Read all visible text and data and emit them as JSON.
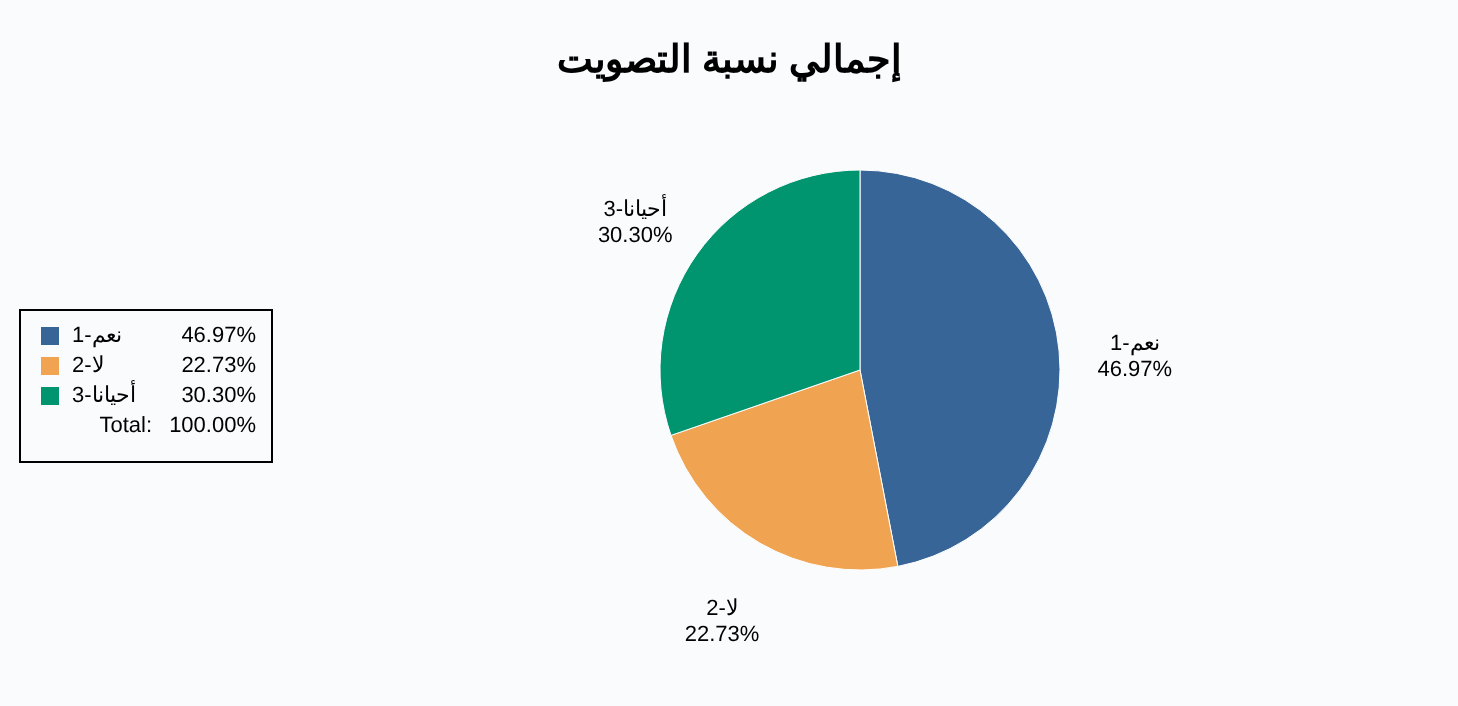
{
  "chart_data": {
    "type": "pie",
    "title": "إجمالي نسبة التصويت",
    "categories": [
      "1-نعم",
      "2-لا",
      "3-أحيانا"
    ],
    "values": [
      46.97,
      22.73,
      30.3
    ],
    "colors": [
      "#376598",
      "#f0a451",
      "#00956e"
    ],
    "value_labels": [
      "46.97%",
      "22.73%",
      "30.30%"
    ],
    "legend": "left",
    "annotations": [
      "Total:",
      "100.00%"
    ]
  }
}
